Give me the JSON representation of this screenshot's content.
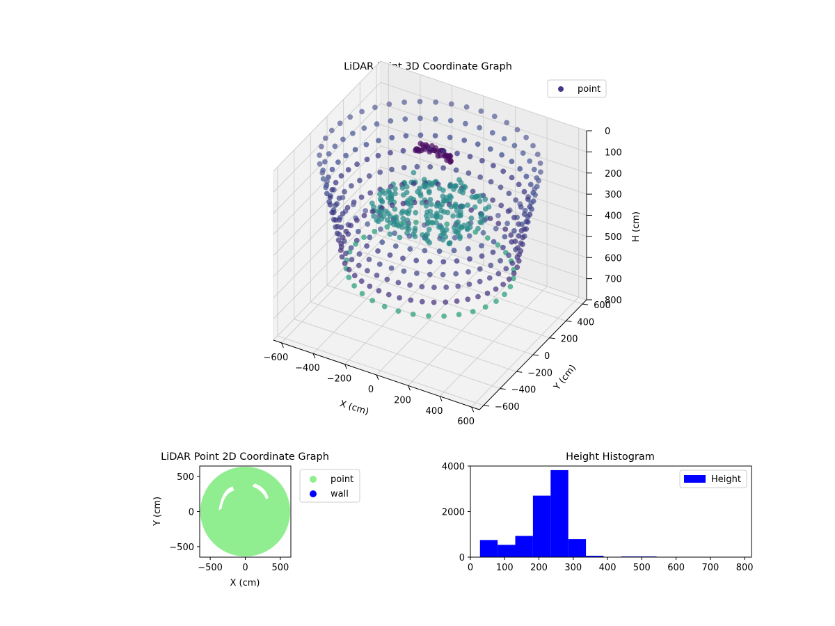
{
  "chart_data": [
    {
      "type": "scatter",
      "projection": "3d",
      "title": "LiDAR Point 3D Coordinate Graph",
      "xlabel": "X (cm)",
      "ylabel": "Y (cm)",
      "zlabel": "H (cm)",
      "xlim": [
        -650,
        650
      ],
      "ylim": [
        -650,
        650
      ],
      "zlim": [
        800,
        0
      ],
      "z_axis_inverted": true,
      "xticks": [
        -600,
        -400,
        -200,
        0,
        200,
        400,
        600
      ],
      "yticks": [
        -600,
        -400,
        -200,
        0,
        200,
        400,
        600
      ],
      "zticks": [
        0,
        100,
        200,
        300,
        400,
        500,
        600,
        700,
        800
      ],
      "grid": true,
      "colormap": "viridis",
      "legend": {
        "placement": "upper-right",
        "entries": [
          {
            "label": "point",
            "color": "#3e3a87"
          }
        ]
      },
      "series": [
        {
          "name": "point",
          "groups": [
            {
              "shape": "ring",
              "radius": 620,
              "height": 60,
              "count": 44,
              "color": "#5b5f97"
            },
            {
              "shape": "ring",
              "radius": 600,
              "height": 130,
              "count": 44,
              "color": "#4a5a95"
            },
            {
              "shape": "ring",
              "radius": 580,
              "height": 200,
              "count": 44,
              "color": "#3b4a8c"
            },
            {
              "shape": "ring",
              "radius": 560,
              "height": 260,
              "count": 46,
              "color": "#3a3484"
            },
            {
              "shape": "ring",
              "radius": 540,
              "height": 330,
              "count": 46,
              "color": "#414487"
            },
            {
              "shape": "ring",
              "radius": 520,
              "height": 400,
              "count": 48,
              "color": "#443a83"
            },
            {
              "shape": "ring",
              "radius": 500,
              "height": 480,
              "count": 48,
              "color": "#46317e"
            },
            {
              "shape": "ring",
              "radius": 470,
              "height": 560,
              "count": 34,
              "color": "#2a9d7c"
            },
            {
              "shape": "disk",
              "radius": 330,
              "height": 270,
              "count": 220,
              "color": "#2a8a8b"
            },
            {
              "shape": "arc",
              "center": [
                -120,
                250
              ],
              "radius": 120,
              "height": 150,
              "count": 40,
              "color": "#4b0c62"
            }
          ]
        }
      ]
    },
    {
      "type": "scatter",
      "title": "LiDAR Point 2D Coordinate Graph",
      "xlabel": "X (cm)",
      "ylabel": "Y (cm)",
      "xlim": [
        -650,
        650
      ],
      "ylim": [
        -650,
        650
      ],
      "xticks": [
        -500,
        0,
        500
      ],
      "yticks": [
        -500,
        0,
        500
      ],
      "legend": {
        "placement": "outside-right",
        "entries": [
          {
            "label": "point",
            "color": "#90ee90"
          },
          {
            "label": "wall",
            "color": "#0000ff"
          }
        ]
      },
      "series": [
        {
          "name": "point",
          "color": "#90ee90",
          "shape": "filled-disk",
          "radius": 640
        },
        {
          "name": "wall",
          "color": "#0000ff",
          "count": 0
        }
      ]
    },
    {
      "type": "bar",
      "subtype": "histogram",
      "title": "Height Histogram",
      "xlim": [
        0,
        820
      ],
      "ylim": [
        0,
        4000
      ],
      "xticks": [
        0,
        100,
        200,
        300,
        400,
        500,
        600,
        700,
        800
      ],
      "yticks": [
        0,
        2000,
        4000
      ],
      "bin_width": 51.5,
      "bin_start": 28,
      "values": [
        750,
        540,
        930,
        2700,
        3820,
        790,
        60,
        0,
        30,
        30,
        10,
        10,
        10,
        10,
        10
      ],
      "color": "#0000ff",
      "legend": {
        "placement": "upper-right",
        "entries": [
          {
            "label": "Height",
            "color": "#0000ff"
          }
        ]
      }
    }
  ]
}
